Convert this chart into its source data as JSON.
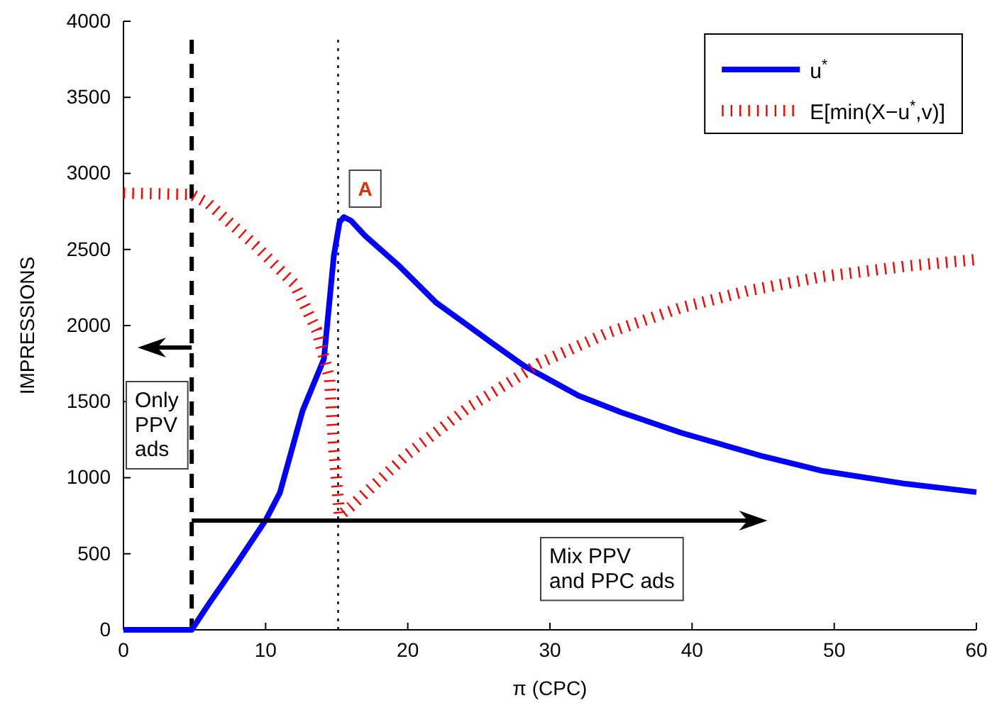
{
  "chart_data": {
    "type": "line",
    "xlabel": "π (CPC)",
    "ylabel": "IMPRESSIONS",
    "xlim": [
      0,
      60
    ],
    "xticks": [
      0,
      10,
      20,
      30,
      40,
      50,
      60
    ],
    "ylim": [
      0,
      4000
    ],
    "yticks": [
      0,
      500,
      1000,
      1500,
      2000,
      2500,
      3000,
      3500,
      4000
    ],
    "legend": "top right",
    "grid": false,
    "series": [
      {
        "name": "u$^{*}$",
        "color": "#0000ff",
        "line_style": "solid",
        "x": [
          0,
          4.8,
          6,
          8,
          10,
          11,
          12.6,
          14.1,
          14.8,
          15.2,
          15.5,
          16,
          17,
          19.3,
          22,
          24.3,
          26,
          28.2,
          32,
          35,
          39.2,
          45,
          49.2,
          55,
          60
        ],
        "values": [
          0,
          0,
          170,
          440,
          720,
          900,
          1440,
          1780,
          2460,
          2680,
          2713,
          2690,
          2590,
          2400,
          2150,
          1995,
          1880,
          1734,
          1540,
          1430,
          1296,
          1140,
          1044,
          960,
          905
        ]
      },
      {
        "name": "E[min(X−u$^{*}$,v)]",
        "color": "#ff0000",
        "line_style": "dotted",
        "x": [
          0,
          4.8,
          6,
          9.3,
          12,
          13.6,
          14.5,
          14.8,
          15.2,
          16,
          20,
          24.3,
          28.2,
          29.2,
          34,
          39.2,
          44,
          49.2,
          55,
          60
        ],
        "values": [
          2870,
          2862,
          2800,
          2525,
          2275,
          1967,
          1650,
          1184,
          750,
          811,
          1156,
          1464,
          1688,
          1750,
          1950,
          2117,
          2230,
          2322,
          2390,
          2434
        ]
      }
    ],
    "ref_lines": [
      {
        "axis": "x",
        "value": 4.8,
        "color": "#000000",
        "line_style": "dashed"
      },
      {
        "axis": "x",
        "value": 15.1,
        "color": "#000000",
        "line_style": "dotted"
      }
    ],
    "annotations": [
      {
        "text": "A",
        "x": 15.5,
        "y": 2713
      },
      "Only PPV ads",
      "Mix PPV and PPC ads"
    ]
  }
}
